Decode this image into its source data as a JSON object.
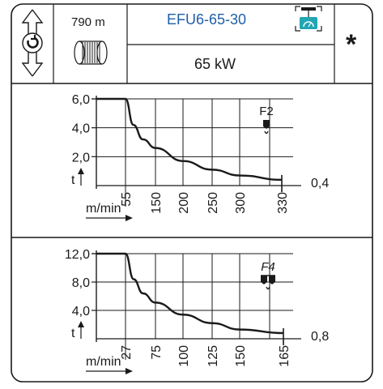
{
  "header": {
    "length": "790 m",
    "model": "EFU6-65-30",
    "power": "65 kW",
    "star": "*"
  },
  "colors": {
    "model_text": "#1f5fa8",
    "badge": "#23a6b4",
    "ink": "#1a1a1a"
  },
  "icons": {
    "rotation": "rotate-arrows-icon",
    "drum": "cable-drum-icon",
    "control": "pendant-control-icon",
    "hook_single": "single-hook-icon",
    "hook_double": "double-hook-icon"
  },
  "chart_data": [
    {
      "type": "line",
      "hook_label": "F2",
      "ylabel": "t",
      "xlabel": "m/min",
      "y_ticks": [
        "6,0",
        "4,0",
        "2,0"
      ],
      "y_tick_values": [
        6,
        4,
        2
      ],
      "ylim": [
        0,
        6
      ],
      "x_ticks": [
        "55",
        "150",
        "200",
        "250",
        "300",
        "330"
      ],
      "x_tick_values": [
        55,
        150,
        200,
        250,
        300,
        330
      ],
      "x_max_label": "0,4",
      "x": [
        0,
        55,
        80,
        110,
        150,
        200,
        250,
        300,
        330
      ],
      "y": [
        6.0,
        6.0,
        4.2,
        3.2,
        2.6,
        1.7,
        1.1,
        0.7,
        0.4
      ]
    },
    {
      "type": "line",
      "hook_label": "F4",
      "ylabel": "t",
      "xlabel": "m/min",
      "y_ticks": [
        "12,0",
        "8,0",
        "4,0"
      ],
      "y_tick_values": [
        12,
        8,
        4
      ],
      "ylim": [
        0,
        12
      ],
      "x_ticks": [
        "27",
        "75",
        "100",
        "125",
        "150",
        "165"
      ],
      "x_tick_values": [
        27,
        75,
        100,
        125,
        150,
        165
      ],
      "x_max_label": "0,8",
      "x": [
        0,
        27,
        40,
        55,
        75,
        100,
        125,
        150,
        165
      ],
      "y": [
        12.0,
        12.0,
        8.4,
        6.4,
        5.1,
        3.4,
        2.2,
        1.3,
        0.8
      ]
    }
  ]
}
